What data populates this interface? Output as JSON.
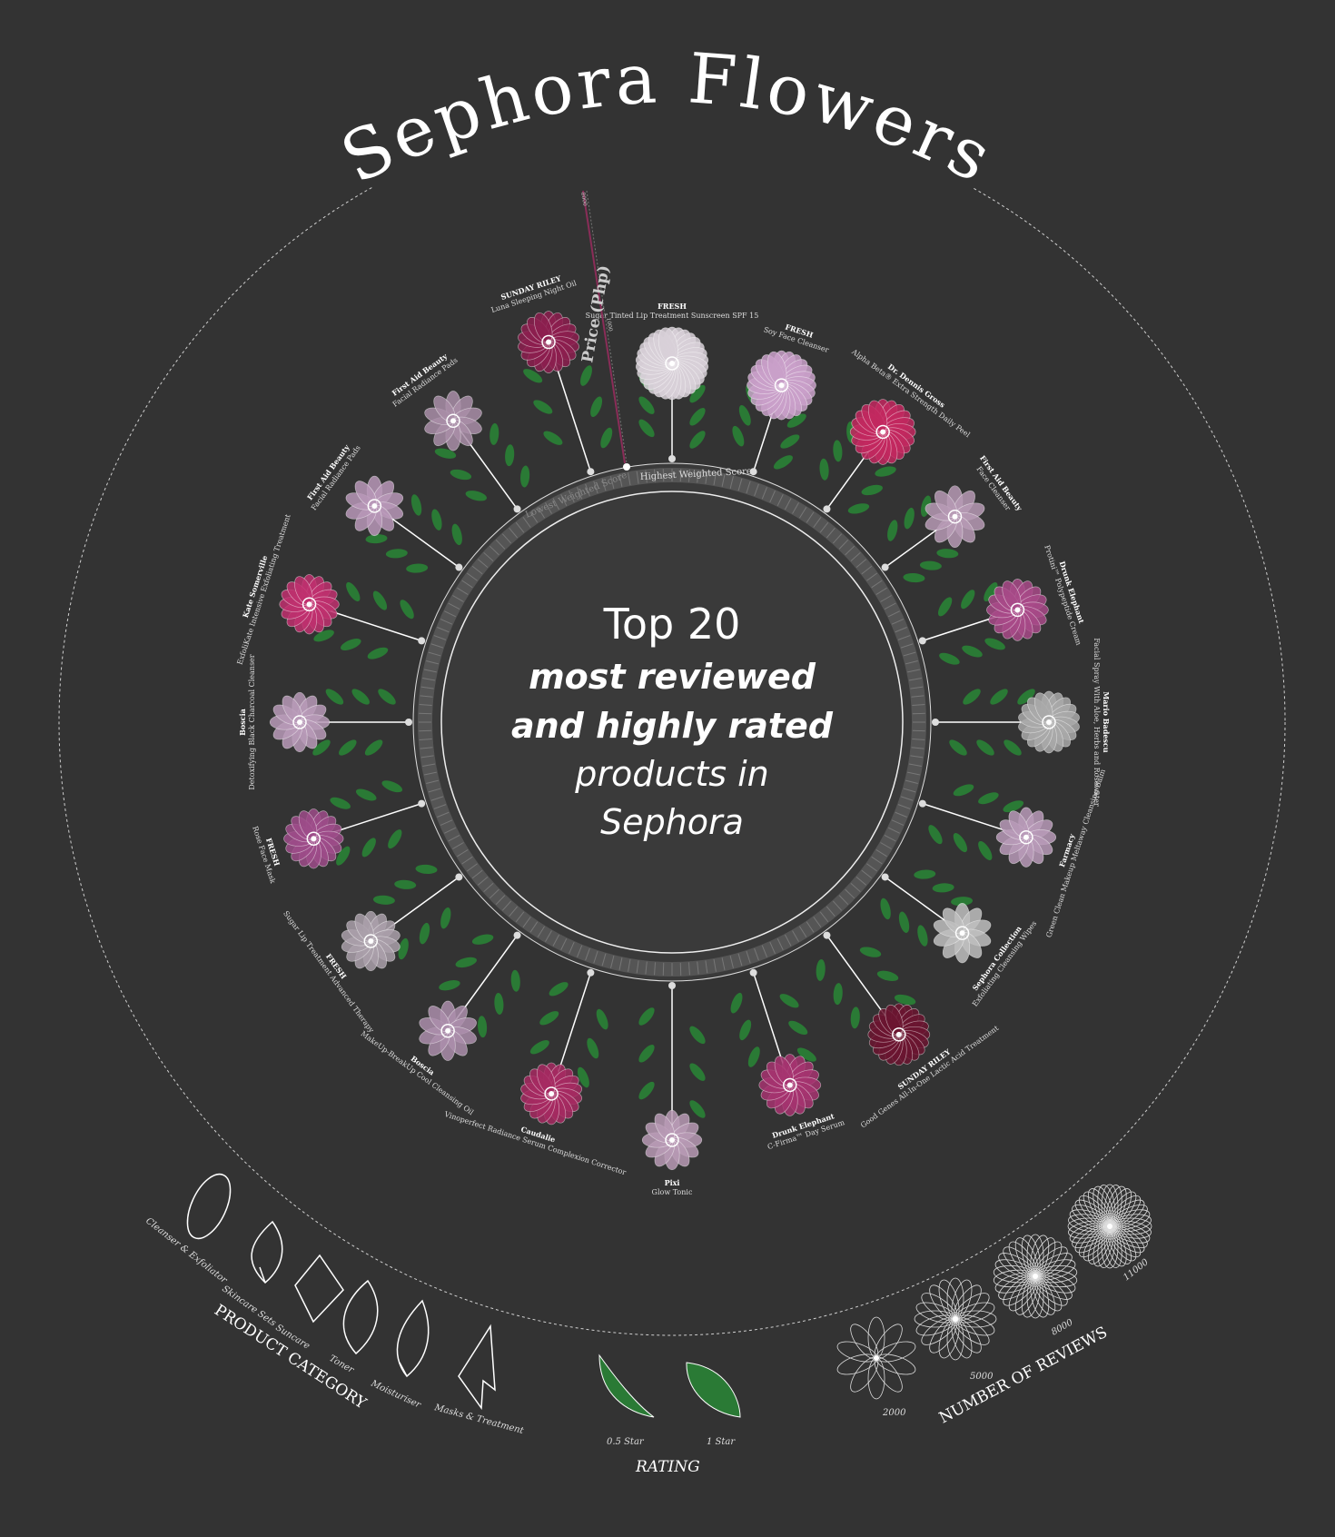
{
  "title": "Sephora Flowers",
  "center": {
    "line1": "Top 20",
    "line2": "most reviewed",
    "line3": "and highly rated",
    "line4": "products in",
    "line5": "Sephora"
  },
  "ring": {
    "highest_label": "Highest Weighted Score",
    "lowest_label": "Lowest Weighted Score"
  },
  "price_axis": {
    "label": "Price (Php)",
    "max_label": "8000",
    "min_label": "1000"
  },
  "colors": {
    "background": "#333333",
    "leaf": "#2a7a35",
    "stem": "#ffffff"
  },
  "products": [
    {
      "brand": "FRESH",
      "name": "Sugar Tinted Lip Treatment Sunscreen SPF 15",
      "color": "#d8d0d8",
      "petals": 30,
      "size": 1.0
    },
    {
      "brand": "FRESH",
      "name": "Soy Face Cleanser",
      "color": "#c9a0c9",
      "petals": 24,
      "size": 0.95
    },
    {
      "brand": "Dr. Dennis Gross",
      "name": "Alpha Beta® Extra Strength Daily Peel",
      "color": "#c2285f",
      "petals": 20,
      "size": 0.9
    },
    {
      "brand": "First Aid Beauty",
      "name": "Face Cleanser",
      "color": "#b79ab5",
      "petals": 10,
      "size": 0.85
    },
    {
      "brand": "Drunk Elephant",
      "name": "Protini™ Polypeptide Cream",
      "color": "#a84a88",
      "petals": 16,
      "size": 0.85
    },
    {
      "brand": "Mario Badescu",
      "name": "Facial Spray With Aloe, Herbs and Rosewater",
      "color": "#a9a9a9",
      "petals": 18,
      "size": 0.85
    },
    {
      "brand": "Farmacy",
      "name": "Green Clean Makeup Meltaway Cleansing Balm",
      "color": "#b99ab8",
      "petals": 12,
      "size": 0.82
    },
    {
      "brand": "Sephora Collection",
      "name": "Exfoliating Cleansing Wipes",
      "color": "#bfbfbf",
      "petals": 10,
      "size": 0.82
    },
    {
      "brand": "SUNDAY RILEY",
      "name": "Good Genes All-In-One Lactic Acid Treatment",
      "color": "#6b1530",
      "petals": 20,
      "size": 0.85
    },
    {
      "brand": "Drunk Elephant",
      "name": "C-Firma™ Day Serum",
      "color": "#a63470",
      "petals": 16,
      "size": 0.85
    },
    {
      "brand": "Pixi",
      "name": "Glow Tonic",
      "color": "#b99ab5",
      "petals": 12,
      "size": 0.82
    },
    {
      "brand": "Caudalie",
      "name": "Vinoperfect Radiance Serum Complexion Corrector",
      "color": "#a62a62",
      "petals": 18,
      "size": 0.85
    },
    {
      "brand": "Boscia",
      "name": "MakeUp-BreakUp Cool Cleansing Oil",
      "color": "#ac8eab",
      "petals": 10,
      "size": 0.82
    },
    {
      "brand": "FRESH",
      "name": "Sugar Lip Treatment Advanced Therapy",
      "color": "#aaa0aa",
      "petals": 14,
      "size": 0.82
    },
    {
      "brand": "FRESH",
      "name": "Rose Face Mask",
      "color": "#9d4c8a",
      "petals": 16,
      "size": 0.82
    },
    {
      "brand": "Boscia",
      "name": "Detoxifying Black Charcoal Cleanser",
      "color": "#b89ab8",
      "petals": 12,
      "size": 0.82
    },
    {
      "brand": "Kate Somerville",
      "name": "ExfoliKate Intensive Exfoliating Treatment",
      "color": "#c0306e",
      "petals": 16,
      "size": 0.82
    },
    {
      "brand": "First Aid Beauty",
      "name": "Facial Radiance Pads",
      "color": "#b898b8",
      "petals": 10,
      "size": 0.82
    },
    {
      "brand": "First Aid Beauty",
      "name": "Facial Radiance Pads",
      "color": "#a98ea8",
      "petals": 10,
      "size": 0.82
    },
    {
      "brand": "SUNDAY RILEY",
      "name": "Luna Sleeping Night Oil",
      "color": "#8c1f4f",
      "petals": 18,
      "size": 0.85
    }
  ],
  "legend": {
    "category": {
      "title": "PRODUCT CATEGORY",
      "items": [
        "Cleanser & Exfoliator",
        "Skincare Sets",
        "Suncare",
        "Toner",
        "Moisturiser",
        "Masks & Treatment"
      ]
    },
    "rating": {
      "title": "RATING",
      "items": [
        "0.5 Star",
        "1 Star"
      ]
    },
    "reviews": {
      "title": "NUMBER OF REVIEWS",
      "items": [
        "2000",
        "5000",
        "8000",
        "11000"
      ]
    }
  }
}
